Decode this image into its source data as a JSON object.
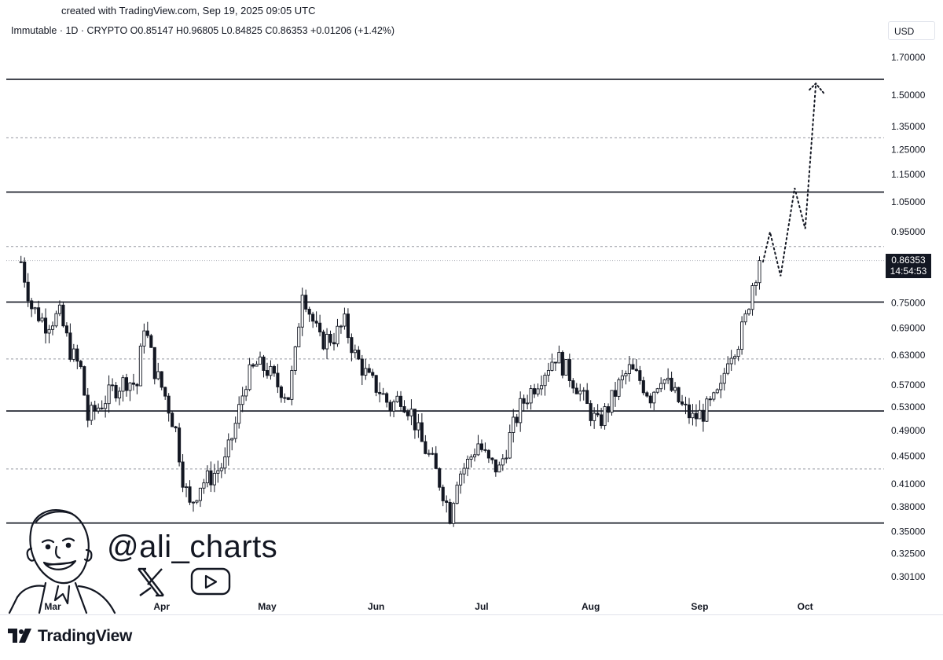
{
  "header": {
    "created_text": "created with TradingView.com, Sep 19, 2025 09:05 UTC",
    "legend_text": "Immutable · 1D · CRYPTO  O0.85147  H0.96805  L0.84825  C0.86353  +0.01206 (+1.42%)"
  },
  "price_scale": {
    "currency": "USD",
    "last_price": "0.86353",
    "countdown": "14:54:53"
  },
  "watermark": {
    "handle": "@ali_charts",
    "social_icons": [
      "x-logo-icon",
      "youtube-play-icon"
    ]
  },
  "branding": {
    "logo_text": "TradingView"
  },
  "colors": {
    "candle": "#131722",
    "level_line": "#131722",
    "dashed_level": "#9598a1",
    "projection": "#131722",
    "price_tag_bg": "#131722"
  },
  "chart_data": {
    "type": "candlestick",
    "symbol": "Immutable",
    "interval": "1D",
    "exchange": "CRYPTO",
    "ohlc_last": {
      "open": 0.85147,
      "high": 0.96805,
      "low": 0.84825,
      "close": 0.86353,
      "change": 0.01206,
      "change_pct": 1.42
    },
    "y_scale": "log",
    "ylim": [
      0.28,
      1.85
    ],
    "y_ticks": [
      "1.70000",
      "1.50000",
      "1.35000",
      "1.25000",
      "1.15000",
      "1.05000",
      "0.95000",
      "0.75000",
      "0.69000",
      "0.63000",
      "0.57000",
      "0.53000",
      "0.49000",
      "0.45000",
      "0.41000",
      "0.38000",
      "0.35000",
      "0.32500",
      "0.30100"
    ],
    "x_ticks": [
      {
        "label": "Mar",
        "date": "2025-03-01"
      },
      {
        "label": "Apr",
        "date": "2025-04-01"
      },
      {
        "label": "May",
        "date": "2025-05-01"
      },
      {
        "label": "Jun",
        "date": "2025-06-01"
      },
      {
        "label": "Jul",
        "date": "2025-07-01"
      },
      {
        "label": "Aug",
        "date": "2025-08-01"
      },
      {
        "label": "Sep",
        "date": "2025-09-01"
      },
      {
        "label": "Oct",
        "date": "2025-10-01"
      }
    ],
    "support_resistance_solid": [
      1.58,
      1.085,
      0.752,
      0.523,
      0.36
    ],
    "support_resistance_dashed": [
      1.3,
      0.905,
      0.622,
      0.431
    ],
    "last_price_line": 0.86353,
    "price_path": [
      [
        "2025-02-20",
        0.86
      ],
      [
        "2025-02-23",
        0.74
      ],
      [
        "2025-02-27",
        0.7
      ],
      [
        "2025-03-03",
        0.72
      ],
      [
        "2025-03-06",
        0.64
      ],
      [
        "2025-03-09",
        0.6
      ],
      [
        "2025-03-11",
        0.51
      ],
      [
        "2025-03-14",
        0.53
      ],
      [
        "2025-03-18",
        0.56
      ],
      [
        "2025-03-22",
        0.58
      ],
      [
        "2025-03-25",
        0.57
      ],
      [
        "2025-03-27",
        0.7
      ],
      [
        "2025-03-30",
        0.6
      ],
      [
        "2025-04-02",
        0.55
      ],
      [
        "2025-04-05",
        0.49
      ],
      [
        "2025-04-07",
        0.42
      ],
      [
        "2025-04-09",
        0.38
      ],
      [
        "2025-04-12",
        0.41
      ],
      [
        "2025-04-15",
        0.42
      ],
      [
        "2025-04-19",
        0.44
      ],
      [
        "2025-04-22",
        0.5
      ],
      [
        "2025-04-25",
        0.58
      ],
      [
        "2025-04-28",
        0.61
      ],
      [
        "2025-05-01",
        0.6
      ],
      [
        "2025-05-04",
        0.57
      ],
      [
        "2025-05-07",
        0.55
      ],
      [
        "2025-05-09",
        0.63
      ],
      [
        "2025-05-11",
        0.79
      ],
      [
        "2025-05-13",
        0.73
      ],
      [
        "2025-05-16",
        0.66
      ],
      [
        "2025-05-20",
        0.67
      ],
      [
        "2025-05-23",
        0.7
      ],
      [
        "2025-05-26",
        0.63
      ],
      [
        "2025-05-30",
        0.58
      ],
      [
        "2025-06-02",
        0.56
      ],
      [
        "2025-06-05",
        0.53
      ],
      [
        "2025-06-08",
        0.55
      ],
      [
        "2025-06-11",
        0.52
      ],
      [
        "2025-06-14",
        0.47
      ],
      [
        "2025-06-17",
        0.44
      ],
      [
        "2025-06-20",
        0.4
      ],
      [
        "2025-06-22",
        0.37
      ],
      [
        "2025-06-24",
        0.42
      ],
      [
        "2025-06-27",
        0.44
      ],
      [
        "2025-06-30",
        0.47
      ],
      [
        "2025-07-03",
        0.44
      ],
      [
        "2025-07-06",
        0.43
      ],
      [
        "2025-07-09",
        0.48
      ],
      [
        "2025-07-12",
        0.53
      ],
      [
        "2025-07-15",
        0.56
      ],
      [
        "2025-07-19",
        0.6
      ],
      [
        "2025-07-22",
        0.63
      ],
      [
        "2025-07-25",
        0.6
      ],
      [
        "2025-07-28",
        0.57
      ],
      [
        "2025-07-31",
        0.53
      ],
      [
        "2025-08-03",
        0.5
      ],
      [
        "2025-08-06",
        0.53
      ],
      [
        "2025-08-09",
        0.57
      ],
      [
        "2025-08-12",
        0.6
      ],
      [
        "2025-08-15",
        0.58
      ],
      [
        "2025-08-18",
        0.55
      ],
      [
        "2025-08-21",
        0.59
      ],
      [
        "2025-08-24",
        0.56
      ],
      [
        "2025-08-27",
        0.53
      ],
      [
        "2025-08-30",
        0.51
      ],
      [
        "2025-09-02",
        0.52
      ],
      [
        "2025-09-05",
        0.54
      ],
      [
        "2025-09-07",
        0.56
      ],
      [
        "2025-09-09",
        0.63
      ],
      [
        "2025-09-12",
        0.66
      ],
      [
        "2025-09-14",
        0.71
      ],
      [
        "2025-09-16",
        0.8
      ],
      [
        "2025-09-18",
        0.86353
      ]
    ],
    "projection_path": [
      [
        "2025-09-19",
        0.86
      ],
      [
        "2025-09-21",
        0.95
      ],
      [
        "2025-09-24",
        0.82
      ],
      [
        "2025-09-28",
        1.1
      ],
      [
        "2025-10-01",
        0.96
      ],
      [
        "2025-10-04",
        1.55
      ]
    ]
  }
}
